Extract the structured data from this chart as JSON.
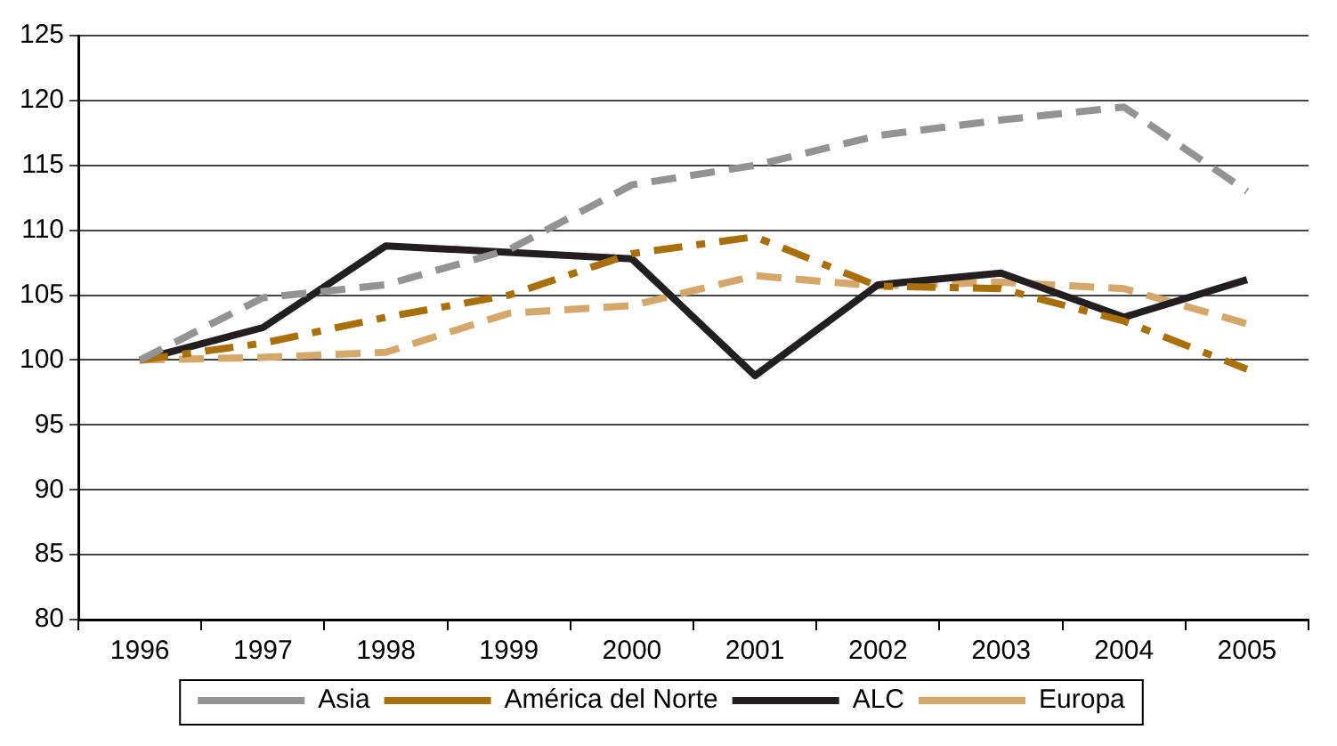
{
  "chart_data": {
    "type": "line",
    "categories": [
      "1996",
      "1997",
      "1998",
      "1999",
      "2000",
      "2001",
      "2002",
      "2003",
      "2004",
      "2005"
    ],
    "series": [
      {
        "name": "Asia",
        "color": "#939393",
        "line_style": "dashed",
        "values": [
          100,
          104.8,
          105.8,
          108.5,
          113.5,
          115,
          117.3,
          118.5,
          119.5,
          113
        ]
      },
      {
        "name": "América del Norte",
        "color": "#a86f0a",
        "line_style": "dashdot",
        "values": [
          100,
          101.3,
          103.3,
          105,
          108.2,
          109.5,
          105.7,
          105.5,
          103,
          99.3
        ]
      },
      {
        "name": "ALC",
        "color": "#231f20",
        "line_style": "solid",
        "values": [
          100,
          102.5,
          108.8,
          108.3,
          107.8,
          98.8,
          105.8,
          106.7,
          103.3,
          106.2
        ]
      },
      {
        "name": "Europa",
        "color": "#d5a76a",
        "line_style": "dashed",
        "values": [
          100,
          100.2,
          100.6,
          103.6,
          104.2,
          106.5,
          105.7,
          106,
          105.5,
          102.8
        ]
      }
    ],
    "ylim": [
      80,
      125
    ],
    "yticks": [
      80,
      85,
      90,
      95,
      100,
      105,
      110,
      115,
      120,
      125
    ],
    "grid": "y",
    "legend": "bottom",
    "marker": "none"
  }
}
